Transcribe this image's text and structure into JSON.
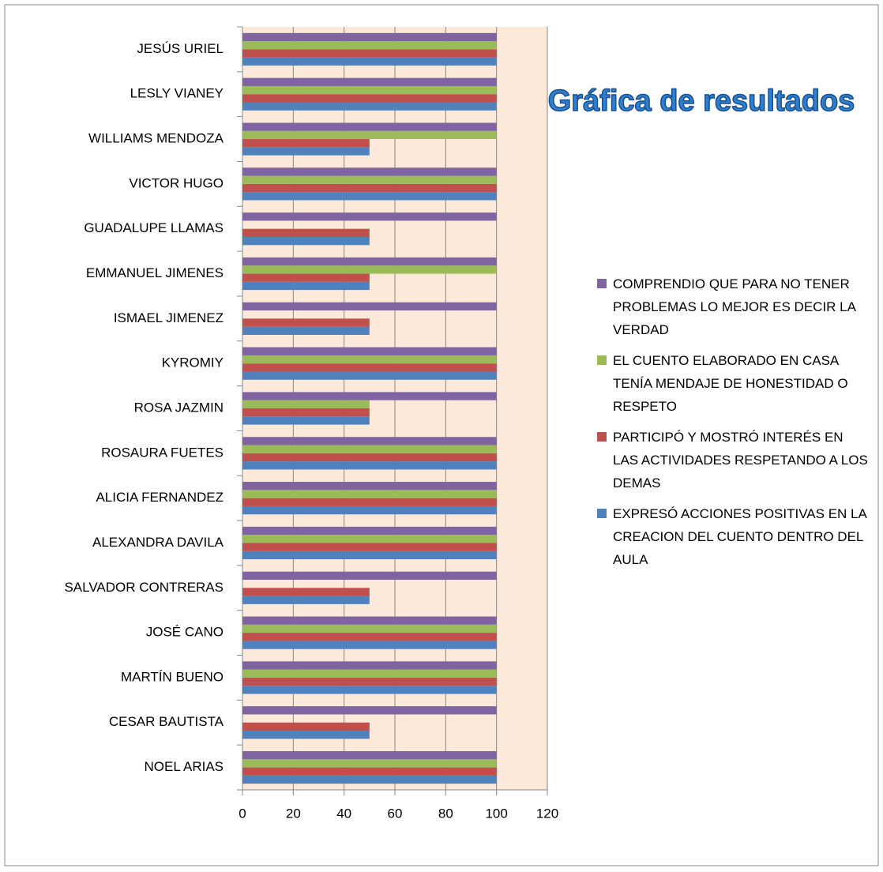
{
  "chart_data": {
    "type": "bar",
    "orientation": "horizontal",
    "title": "Gráfica de resultados",
    "categories": [
      "NOEL ARIAS",
      "CESAR BAUTISTA",
      "MARTÍN BUENO",
      "JOSÉ CANO",
      "SALVADOR CONTRERAS",
      "ALEXANDRA DAVILA",
      "ALICIA FERNANDEZ",
      "ROSAURA FUETES",
      "ROSA JAZMIN",
      "KYROMIY",
      "ISMAEL JIMENEZ",
      "EMMANUEL JIMENES",
      "GUADALUPE LLAMAS",
      "VICTOR HUGO",
      "WILLIAMS MENDOZA",
      "LESLY VIANEY",
      "JESÚS URIEL"
    ],
    "series": [
      {
        "name": "EXPRESÓ ACCIONES POSITIVAS EN LA CREACION DEL CUENTO DENTRO DEL AULA",
        "color": "#4f81bd",
        "values": [
          100,
          50,
          100,
          100,
          50,
          100,
          100,
          100,
          50,
          100,
          50,
          50,
          50,
          100,
          50,
          100,
          100
        ]
      },
      {
        "name": "PARTICIPÓ Y MOSTRÓ INTERÉS EN LAS ACTIVIDADES RESPETANDO A LOS DEMAS",
        "color": "#c0504d",
        "values": [
          100,
          50,
          100,
          100,
          50,
          100,
          100,
          100,
          50,
          100,
          50,
          50,
          50,
          100,
          50,
          100,
          100
        ]
      },
      {
        "name": "EL CUENTO ELABORADO EN CASA TENÍA MENDAJE DE HONESTIDAD O RESPETO",
        "color": "#9bbb59",
        "values": [
          100,
          0,
          100,
          100,
          0,
          100,
          100,
          100,
          50,
          100,
          0,
          100,
          0,
          100,
          100,
          100,
          100
        ]
      },
      {
        "name": "COMPRENDIO QUE PARA NO TENER PROBLEMAS LO MEJOR ES DECIR LA VERDAD",
        "color": "#8064a2",
        "values": [
          100,
          100,
          100,
          100,
          100,
          100,
          100,
          100,
          100,
          100,
          100,
          100,
          100,
          100,
          100,
          100,
          100
        ]
      }
    ],
    "xlim": [
      0,
      120
    ],
    "xticks": [
      0,
      20,
      40,
      60,
      80,
      100,
      120
    ],
    "grid": true,
    "legend": "right"
  }
}
